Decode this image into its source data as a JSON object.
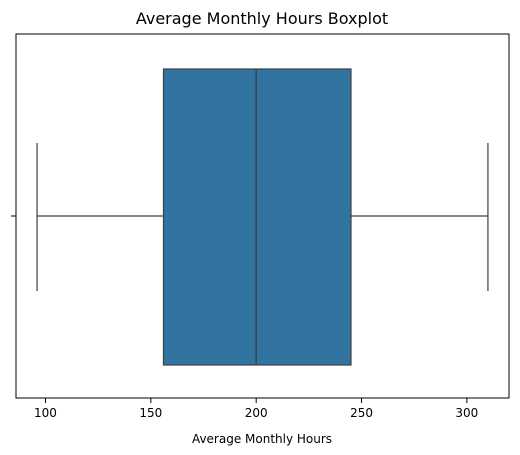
{
  "chart_data": {
    "type": "boxplot",
    "title": "Average Monthly Hours Boxplot",
    "xlabel": "Average Monthly Hours",
    "ylabel": "",
    "orientation": "horizontal",
    "xlim": [
      86,
      320
    ],
    "xticks": [
      100,
      150,
      200,
      250,
      300
    ],
    "grid": false,
    "legend": "none",
    "box": {
      "whisker_low": 96,
      "q1": 156,
      "median": 200,
      "q3": 245,
      "whisker_high": 310
    },
    "colors": {
      "box_fill": "#3274a1",
      "line": "#3f3f3f",
      "axes": "#000000"
    }
  }
}
